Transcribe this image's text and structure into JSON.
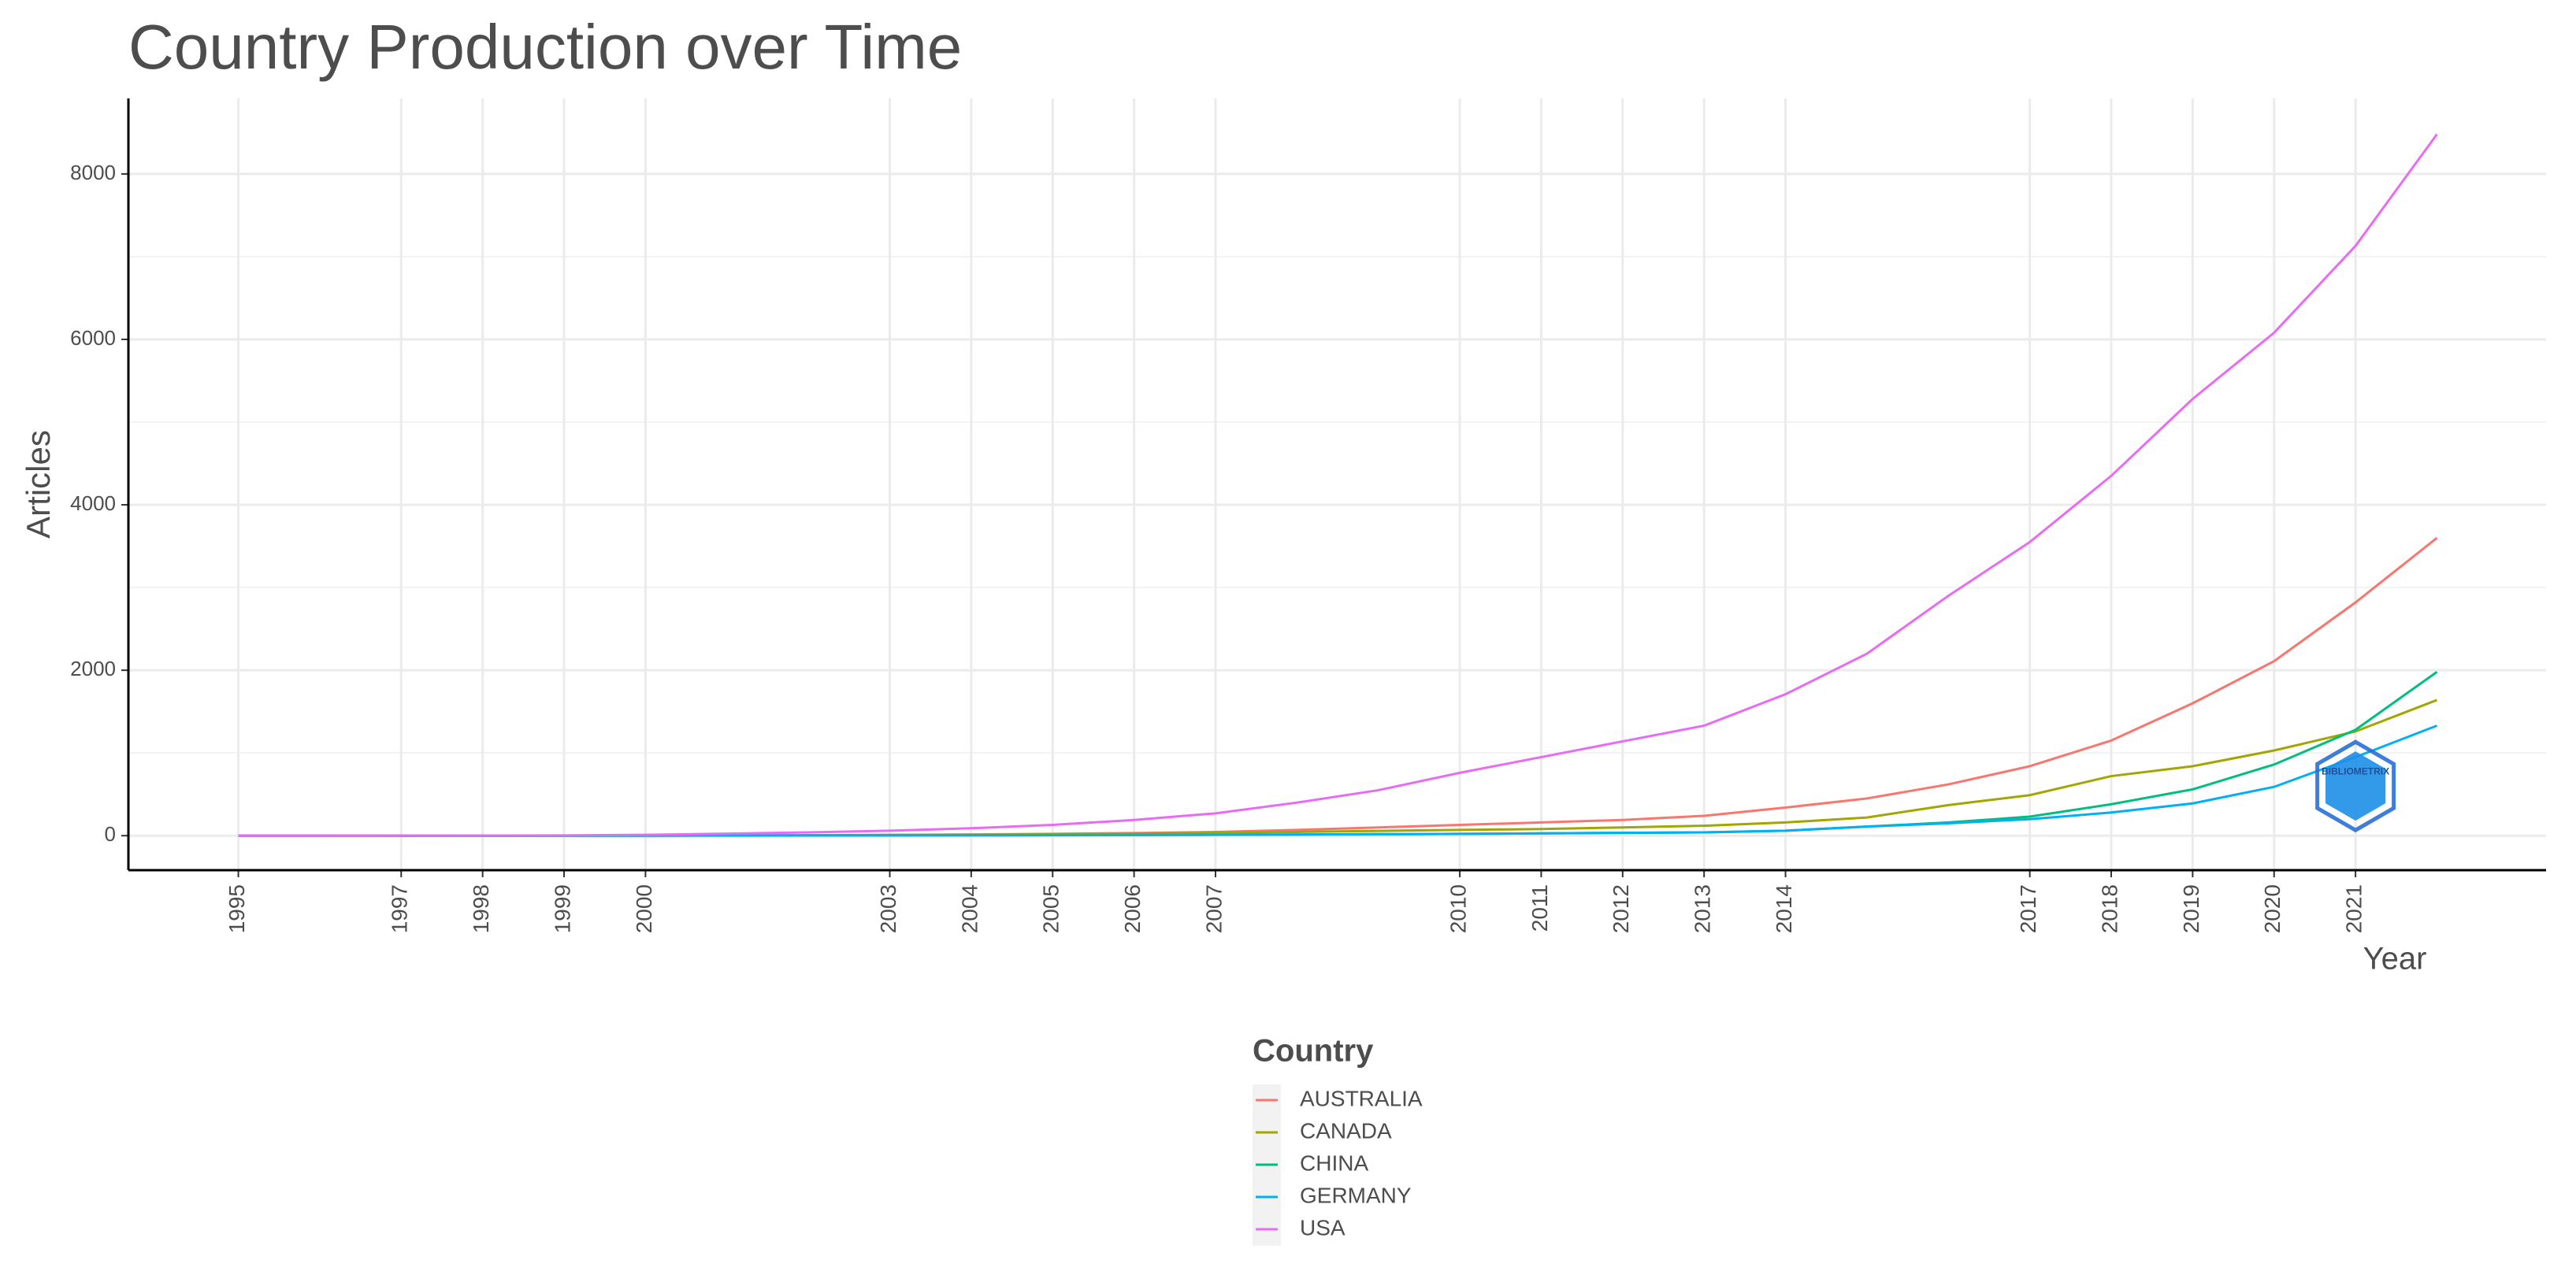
{
  "chart_data": {
    "type": "line",
    "title": "Country Production over Time",
    "x_label": "Year",
    "y_label": "Articles",
    "legend_title": "Country",
    "watermark": "BIBLIOMETRIX",
    "x": [
      1995,
      1996,
      1997,
      1998,
      1999,
      2000,
      2001,
      2002,
      2003,
      2004,
      2005,
      2006,
      2007,
      2008,
      2009,
      2010,
      2011,
      2012,
      2013,
      2014,
      2015,
      2016,
      2017,
      2018,
      2019,
      2020,
      2021,
      2022
    ],
    "series": [
      {
        "name": "AUSTRALIA",
        "color": "#f8766d",
        "values": [
          0,
          0,
          0,
          0,
          1,
          2,
          4,
          6,
          10,
          15,
          22,
          32,
          45,
          70,
          100,
          130,
          160,
          190,
          240,
          340,
          450,
          620,
          840,
          1150,
          1600,
          2110,
          2820,
          3600
        ]
      },
      {
        "name": "CANADA",
        "color": "#a3a500",
        "values": [
          0,
          0,
          0,
          0,
          0,
          1,
          3,
          5,
          8,
          12,
          18,
          25,
          35,
          45,
          58,
          70,
          80,
          100,
          120,
          160,
          220,
          370,
          490,
          720,
          840,
          1030,
          1260,
          1640
        ]
      },
      {
        "name": "CHINA",
        "color": "#00bf7d",
        "values": [
          0,
          0,
          0,
          0,
          0,
          0,
          1,
          2,
          3,
          4,
          6,
          8,
          10,
          14,
          18,
          22,
          28,
          34,
          40,
          60,
          110,
          160,
          230,
          380,
          560,
          860,
          1280,
          1980
        ]
      },
      {
        "name": "GERMANY",
        "color": "#00b0f6",
        "values": [
          0,
          0,
          0,
          0,
          0,
          1,
          2,
          3,
          4,
          5,
          7,
          9,
          11,
          14,
          18,
          22,
          28,
          34,
          40,
          60,
          110,
          150,
          200,
          280,
          390,
          590,
          950,
          1330
        ]
      },
      {
        "name": "USA",
        "color": "#e76bf3",
        "values": [
          0,
          0,
          1,
          2,
          3,
          10,
          25,
          40,
          60,
          90,
          130,
          190,
          270,
          400,
          550,
          760,
          950,
          1140,
          1330,
          1710,
          2200,
          2900,
          3550,
          4350,
          5280,
          6080,
          7130,
          8480
        ]
      }
    ],
    "xlim": [
      1993.65,
      2023.34
    ],
    "ylim": [
      -417,
      8913
    ],
    "xticks": [
      1995,
      1997,
      1998,
      1999,
      2000,
      2003,
      2004,
      2005,
      2006,
      2007,
      2010,
      2011,
      2012,
      2013,
      2014,
      2017,
      2018,
      2019,
      2020,
      2021
    ],
    "yticks": [
      0,
      2000,
      4000,
      6000,
      8000
    ],
    "grid": true,
    "legend": "bottom"
  }
}
